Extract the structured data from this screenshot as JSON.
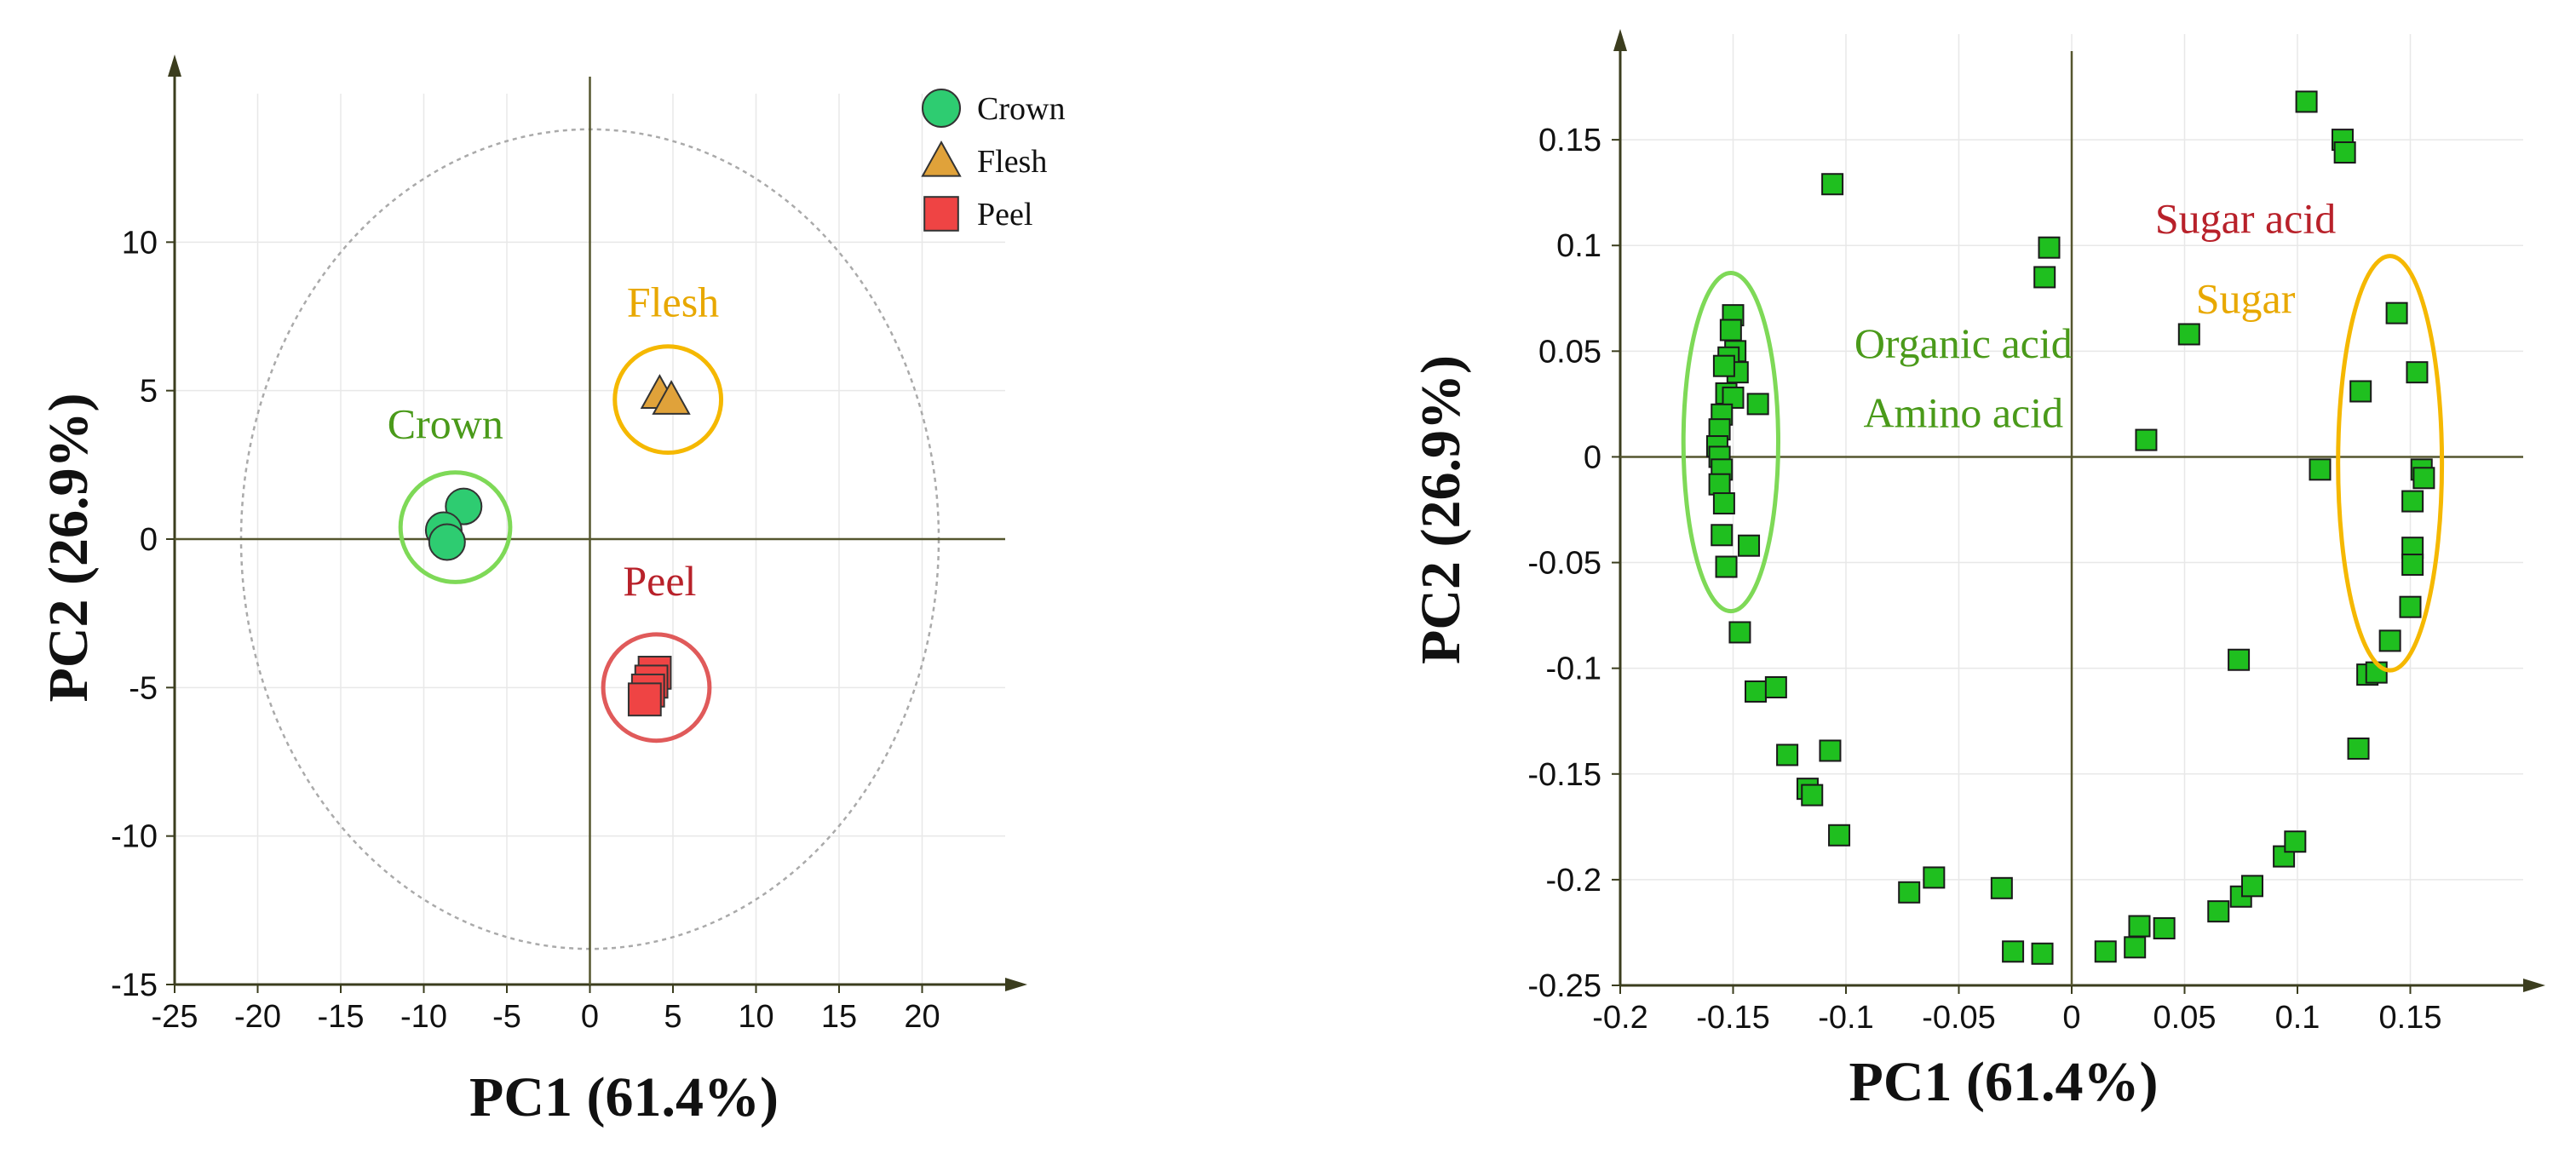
{
  "colors": {
    "crown": "#2ecc71",
    "flesh": "#e0a23a",
    "peel": "#ef4444",
    "loading": "#1fbf1f",
    "green_label": "#4a9a1a",
    "orange_label": "#e8a800",
    "red_label": "#b8212a",
    "green_ring": "#7ed957",
    "orange_ring": "#f5b800",
    "red_ring": "#e05a5a",
    "ellipse": "#aaaaaa"
  },
  "chart_data": [
    {
      "type": "scatter",
      "name": "scores-plot",
      "xlabel": "PC1 (61.4%)",
      "ylabel": "PC2 (26.9%)",
      "xlim": [
        -25,
        25
      ],
      "ylim": [
        -15,
        15
      ],
      "xticks": [
        -25,
        -20,
        -15,
        -10,
        -5,
        0,
        5,
        10,
        15,
        20
      ],
      "yticks": [
        -15,
        -10,
        -5,
        0,
        5,
        10
      ],
      "confidence_ellipse": {
        "center": [
          0,
          0
        ],
        "rx": 21,
        "ry": 13.8
      },
      "legend": [
        "Crown",
        "Flesh",
        "Peel"
      ],
      "legend_position": "top-right",
      "series": [
        {
          "name": "Crown",
          "marker": "circle",
          "points": [
            [
              -7.6,
              1.1
            ],
            [
              -8.8,
              0.3
            ],
            [
              -8.6,
              -0.1
            ]
          ]
        },
        {
          "name": "Flesh",
          "marker": "triangle",
          "points": [
            [
              4.2,
              4.9
            ],
            [
              4.9,
              4.7
            ]
          ]
        },
        {
          "name": "Peel",
          "marker": "square",
          "points": [
            [
              3.9,
              -4.5
            ],
            [
              3.7,
              -4.8
            ],
            [
              3.5,
              -5.1
            ],
            [
              3.3,
              -5.4
            ]
          ]
        }
      ],
      "groups": [
        {
          "label": "Crown",
          "center": [
            -8.1,
            0.4
          ],
          "radius": 3.3,
          "label_at": [
            -8.7,
            3.4
          ],
          "color_key": "green_label",
          "ring_key": "green_ring"
        },
        {
          "label": "Flesh",
          "center": [
            4.7,
            4.7
          ],
          "radius": 3.2,
          "label_at": [
            5.0,
            7.5
          ],
          "color_key": "orange_label",
          "ring_key": "orange_ring"
        },
        {
          "label": "Peel",
          "center": [
            4.0,
            -5.0
          ],
          "radius": 3.2,
          "label_at": [
            4.2,
            -1.9
          ],
          "color_key": "red_label",
          "ring_key": "red_ring"
        }
      ]
    },
    {
      "type": "scatter",
      "name": "loadings-plot",
      "xlabel": "PC1 (61.4%)",
      "ylabel": "PC2 (26.9%)",
      "xlim": [
        -0.2,
        0.2
      ],
      "ylim": [
        -0.25,
        0.2
      ],
      "xticks": [
        -0.2,
        -0.15,
        -0.1,
        -0.05,
        0,
        0.05,
        0.1,
        0.15
      ],
      "xtick_labels": [
        "-0.2",
        "-0.15",
        "-0.1",
        "-0.05",
        "0",
        "0.05",
        "0.1",
        "0.15"
      ],
      "yticks": [
        -0.25,
        -0.2,
        -0.15,
        -0.1,
        -0.05,
        0,
        0.05,
        0.1,
        0.15
      ],
      "ytick_labels": [
        "-0.25",
        "-0.2",
        "-0.15",
        "-0.1",
        "-0.05",
        "0",
        "0.05",
        "0.1",
        "0.15"
      ],
      "points": [
        [
          -0.15,
          0.067
        ],
        [
          -0.151,
          0.06
        ],
        [
          -0.149,
          0.05
        ],
        [
          -0.152,
          0.047
        ],
        [
          -0.148,
          0.04
        ],
        [
          -0.154,
          0.043
        ],
        [
          -0.153,
          0.03
        ],
        [
          -0.15,
          0.028
        ],
        [
          -0.155,
          0.02
        ],
        [
          -0.156,
          0.013
        ],
        [
          -0.157,
          0.005
        ],
        [
          -0.156,
          0.0
        ],
        [
          -0.155,
          -0.006
        ],
        [
          -0.156,
          -0.013
        ],
        [
          -0.154,
          -0.022
        ],
        [
          -0.155,
          -0.037
        ],
        [
          -0.153,
          -0.052
        ],
        [
          -0.143,
          -0.042
        ],
        [
          -0.139,
          0.025
        ],
        [
          -0.147,
          -0.083
        ],
        [
          -0.14,
          -0.111
        ],
        [
          -0.131,
          -0.109
        ],
        [
          -0.126,
          -0.141
        ],
        [
          -0.117,
          -0.157
        ],
        [
          -0.115,
          -0.16
        ],
        [
          -0.107,
          -0.139
        ],
        [
          -0.103,
          -0.179
        ],
        [
          -0.106,
          0.129
        ],
        [
          -0.072,
          -0.206
        ],
        [
          -0.061,
          -0.199
        ],
        [
          -0.031,
          -0.204
        ],
        [
          -0.026,
          -0.234
        ],
        [
          -0.013,
          -0.235
        ],
        [
          -0.012,
          0.085
        ],
        [
          -0.01,
          0.099
        ],
        [
          0.015,
          -0.234
        ],
        [
          0.028,
          -0.232
        ],
        [
          0.03,
          -0.222
        ],
        [
          0.041,
          -0.223
        ],
        [
          0.033,
          0.008
        ],
        [
          0.052,
          0.058
        ],
        [
          0.065,
          -0.215
        ],
        [
          0.074,
          -0.096
        ],
        [
          0.075,
          -0.208
        ],
        [
          0.08,
          -0.203
        ],
        [
          0.094,
          -0.189
        ],
        [
          0.099,
          -0.182
        ],
        [
          0.104,
          0.168
        ],
        [
          0.12,
          0.15
        ],
        [
          0.121,
          0.144
        ],
        [
          0.11,
          -0.006
        ],
        [
          0.127,
          -0.138
        ],
        [
          0.128,
          0.031
        ],
        [
          0.131,
          -0.103
        ],
        [
          0.135,
          -0.102
        ],
        [
          0.141,
          -0.087
        ],
        [
          0.144,
          0.068
        ],
        [
          0.15,
          -0.071
        ],
        [
          0.151,
          -0.043
        ],
        [
          0.151,
          -0.051
        ],
        [
          0.151,
          -0.021
        ],
        [
          0.153,
          0.04
        ],
        [
          0.155,
          -0.006
        ],
        [
          0.156,
          -0.01
        ]
      ],
      "groups": [
        {
          "lines": [
            "Organic acid",
            "Amino acid"
          ],
          "ellipse_center": [
            -0.151,
            0.007
          ],
          "ellipse_r": [
            0.021,
            0.08
          ],
          "text_at": [
            -0.048,
            0.047
          ],
          "line_gap": 0.033,
          "color_key": "green_label",
          "ring_key": "green_ring"
        },
        {
          "lines": [
            "Sugar acid",
            "Sugar"
          ],
          "ellipse_center": [
            0.141,
            -0.003
          ],
          "ellipse_r": [
            0.023,
            0.098
          ],
          "text_at": [
            0.077,
            0.106
          ],
          "line_gap": 0.038,
          "color_key": "red_label",
          "second_color_key": "orange_label",
          "ring_key": "orange_ring"
        }
      ]
    }
  ]
}
